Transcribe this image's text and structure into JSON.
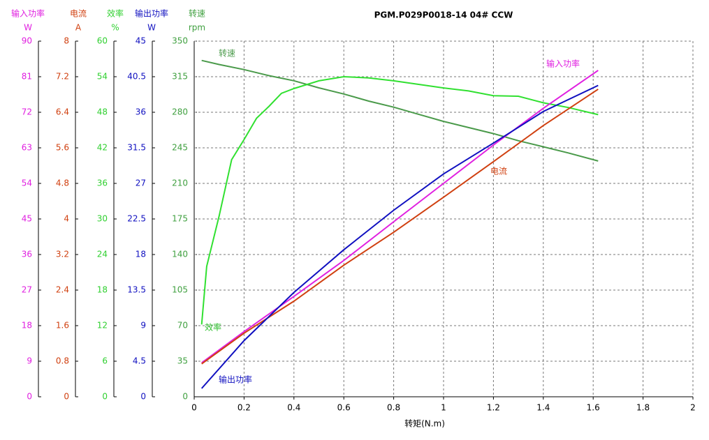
{
  "chart_data": {
    "type": "line",
    "title": "PGM.P029P0018-14   04#   CCW",
    "x_label": "转矩(N.m)",
    "xlim": [
      0,
      2
    ],
    "xticks": [
      0,
      0.2,
      0.4,
      0.6,
      0.8,
      1,
      1.2,
      1.4,
      1.6,
      1.8,
      2
    ],
    "grid": true,
    "y_axes": [
      {
        "name": "输入功率",
        "unit": "W",
        "color": "#e020e0",
        "ylim": [
          0,
          90
        ],
        "yticks": [
          0,
          9,
          18,
          27,
          36,
          45,
          54,
          63,
          72,
          81,
          90
        ]
      },
      {
        "name": "电流",
        "unit": "A",
        "color": "#d04010",
        "ylim": [
          0,
          8
        ],
        "yticks": [
          0,
          0.8,
          1.6,
          2.4,
          3.2,
          4,
          4.8,
          5.6,
          6.4,
          7.2,
          8
        ]
      },
      {
        "name": "效率",
        "unit": "%",
        "color": "#30d030",
        "ylim": [
          0,
          60
        ],
        "yticks": [
          0,
          6,
          12,
          18,
          24,
          30,
          36,
          42,
          48,
          54,
          60
        ]
      },
      {
        "name": "输出功率",
        "unit": "W",
        "color": "#1010c0",
        "ylim": [
          0,
          45
        ],
        "yticks": [
          0,
          4.5,
          9,
          13.5,
          18,
          22.5,
          27,
          31.5,
          36,
          40.5,
          45
        ]
      },
      {
        "name": "转速",
        "unit": "rpm",
        "color": "#40a040",
        "ylim": [
          0,
          350
        ],
        "yticks": [
          0,
          35,
          70,
          105,
          140,
          175,
          210,
          245,
          280,
          315,
          350
        ]
      }
    ],
    "series": [
      {
        "name": "转速",
        "color": "#4a9a4a",
        "axis": 4,
        "x": [
          0.03,
          0.1,
          0.2,
          0.3,
          0.4,
          0.5,
          0.6,
          0.7,
          0.8,
          0.9,
          1.0,
          1.1,
          1.2,
          1.3,
          1.4,
          1.5,
          1.62
        ],
        "values": [
          331,
          327,
          322,
          316,
          311,
          304,
          298,
          291,
          285,
          278,
          271,
          265,
          259,
          252,
          246,
          240,
          232
        ]
      },
      {
        "name": "效率",
        "color": "#30e030",
        "axis": 2,
        "x": [
          0.03,
          0.05,
          0.1,
          0.15,
          0.2,
          0.25,
          0.3,
          0.35,
          0.4,
          0.5,
          0.6,
          0.7,
          0.8,
          0.9,
          1.0,
          1.1,
          1.2,
          1.3,
          1.4,
          1.5,
          1.62
        ],
        "values": [
          12.2,
          22,
          30.5,
          40,
          43.4,
          47,
          49,
          51.2,
          52,
          53.3,
          54,
          53.8,
          53.3,
          52.7,
          52.1,
          51.6,
          50.8,
          50.7,
          49.6,
          48.8,
          47.6
        ]
      },
      {
        "name": "输入功率",
        "color": "#e020e0",
        "axis": 0,
        "x": [
          0.03,
          0.2,
          0.4,
          0.6,
          0.8,
          1.0,
          1.2,
          1.4,
          1.62
        ],
        "values": [
          8.6,
          16.5,
          25.4,
          34.5,
          44.3,
          54,
          63.7,
          73,
          82.6
        ]
      },
      {
        "name": "电流",
        "color": "#d04010",
        "axis": 1,
        "x": [
          0.03,
          0.2,
          0.4,
          0.6,
          0.8,
          1.0,
          1.2,
          1.4,
          1.62
        ],
        "values": [
          0.74,
          1.43,
          2.15,
          2.96,
          3.7,
          4.49,
          5.29,
          6.1,
          6.92
        ]
      },
      {
        "name": "输出功率",
        "color": "#1010c0",
        "axis": 3,
        "x": [
          0.03,
          0.2,
          0.4,
          0.6,
          0.8,
          1.0,
          1.2,
          1.4,
          1.62
        ],
        "values": [
          1.06,
          7.1,
          13.2,
          18.6,
          23.6,
          28.2,
          32.1,
          36.1,
          39.4
        ]
      }
    ]
  }
}
